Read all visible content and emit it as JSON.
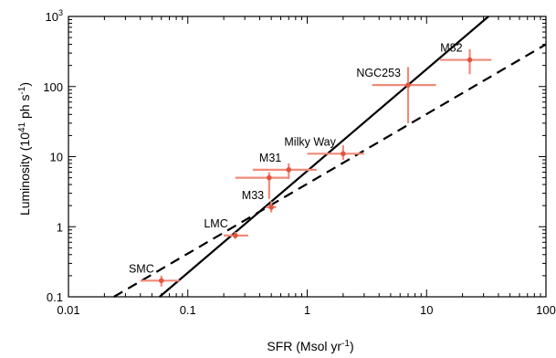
{
  "chart_data": {
    "type": "scatter",
    "title": "",
    "xlabel": "SFR (Msol yr",
    "xlabel_sup": "-1",
    "xlabel_close": ")",
    "ylabel": "Luminosity (10",
    "ylabel_sup1": "41",
    "ylabel_mid": " ph s",
    "ylabel_sup2": "-1",
    "ylabel_close": ")",
    "xscale": "log",
    "yscale": "log",
    "xlim": [
      0.01,
      100
    ],
    "ylim": [
      0.1,
      1000
    ],
    "x_ticks": [
      {
        "value": 0.01,
        "label": "0.01"
      },
      {
        "value": 0.1,
        "label": "0.1"
      },
      {
        "value": 1,
        "label": "1"
      },
      {
        "value": 10,
        "label": "10"
      },
      {
        "value": 100,
        "label": "100"
      }
    ],
    "y_ticks": [
      {
        "value": 0.1,
        "label": "0.1"
      },
      {
        "value": 1,
        "label": "1"
      },
      {
        "value": 10,
        "label": "10"
      },
      {
        "value": 100,
        "label": "100"
      },
      {
        "value": 1000,
        "label": "10",
        "sup": "3"
      }
    ],
    "grid": false,
    "colors": {
      "points": "#f08a7a",
      "lines": "#000000"
    },
    "points": [
      {
        "name": "SMC",
        "x": 0.06,
        "y": 0.17,
        "x_err": [
          0.04,
          0.085
        ],
        "y_err": [
          0.14,
          0.2
        ],
        "label_pos": "upper-left"
      },
      {
        "name": "LMC",
        "x": 0.25,
        "y": 0.75,
        "x_err": [
          0.2,
          0.32
        ],
        "y_err": [
          0.67,
          0.84
        ],
        "label_pos": "upper-left"
      },
      {
        "name": "M33",
        "x": 0.5,
        "y": 1.9,
        "x_err": [
          0.45,
          0.55
        ],
        "y_err": [
          1.6,
          2.3
        ],
        "label_pos": "upper-left"
      },
      {
        "name": "M31",
        "x": 0.7,
        "y": 6.5,
        "x_err": [
          0.35,
          1.2
        ],
        "y_err": [
          4.8,
          8.0
        ],
        "label_pos": "upper-left"
      },
      {
        "name": "",
        "x": 0.48,
        "y": 5.0,
        "x_err": [
          0.25,
          0.7
        ],
        "y_err": [
          2.5,
          6.0
        ],
        "label_pos": "none"
      },
      {
        "name": "Milky Way",
        "x": 2.0,
        "y": 11.0,
        "x_err": [
          1.0,
          3.0
        ],
        "y_err": [
          9.0,
          14.5
        ],
        "label_pos": "upper-left"
      },
      {
        "name": "NGC253",
        "x": 7.0,
        "y": 105,
        "x_err": [
          3.5,
          12
        ],
        "y_err": [
          30,
          190
        ],
        "label_pos": "upper-left"
      },
      {
        "name": "M82",
        "x": 23,
        "y": 240,
        "x_err": [
          13,
          35
        ],
        "y_err": [
          150,
          340
        ],
        "label_pos": "upper-left"
      }
    ],
    "fit_lines": [
      {
        "style": "solid",
        "x": [
          0.058,
          33
        ],
        "y": [
          0.1,
          1000
        ]
      },
      {
        "style": "dashed",
        "x": [
          0.024,
          100
        ],
        "y": [
          0.1,
          400
        ]
      }
    ]
  }
}
